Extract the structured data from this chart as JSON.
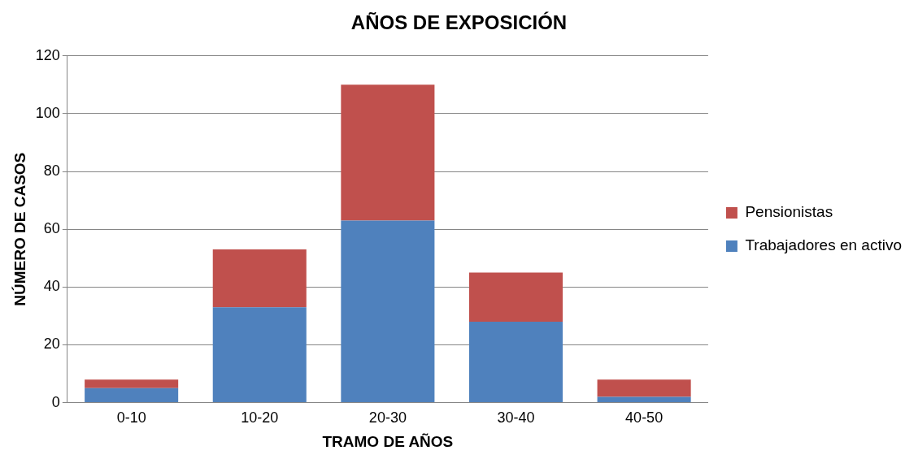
{
  "chart_data": {
    "type": "bar",
    "title": "AÑOS DE EXPOSICIÓN",
    "xlabel": "TRAMO DE AÑOS",
    "ylabel": "NÚMERO DE CASOS",
    "categories": [
      "0-10",
      "10-20",
      "20-30",
      "30-40",
      "40-50"
    ],
    "series": [
      {
        "name": "Trabajadores en activo",
        "color": "#4f81bd",
        "values": [
          5,
          33,
          63,
          28,
          2
        ]
      },
      {
        "name": "Pensionistas",
        "color": "#c0504d",
        "values": [
          3,
          20,
          47,
          17,
          6
        ]
      }
    ],
    "stacked": true,
    "ylim": [
      0,
      120
    ],
    "yticks": [
      0,
      20,
      40,
      60,
      80,
      100,
      120
    ],
    "grid": "y",
    "legend": "right"
  }
}
